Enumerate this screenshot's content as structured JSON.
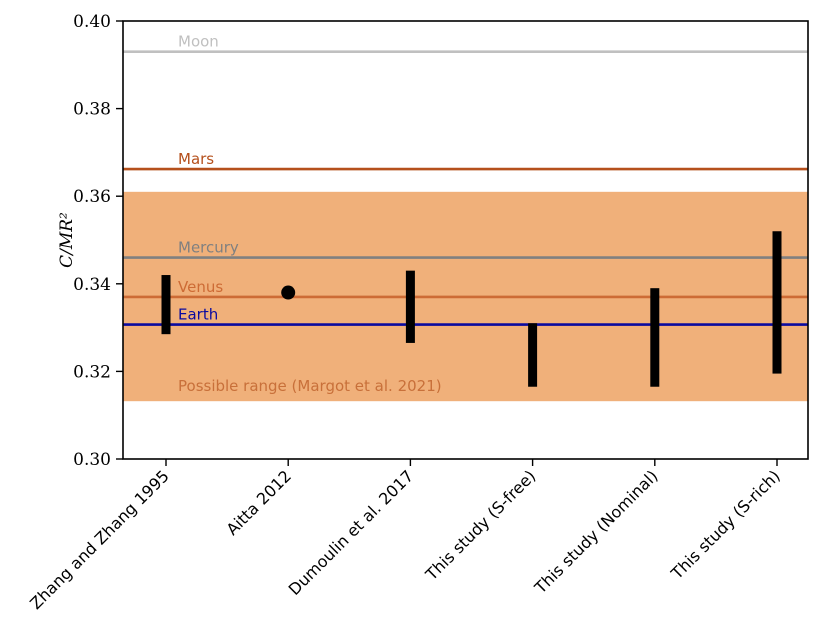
{
  "chart_data": {
    "type": "scatter",
    "title": "",
    "xlabel": "",
    "ylabel": "C/MR²",
    "ylim": [
      0.3,
      0.4
    ],
    "yticks": [
      "0.30",
      "0.32",
      "0.34",
      "0.36",
      "0.38",
      "0.40"
    ],
    "grid": false,
    "categories": [
      "Zhang and Zhang 1995",
      "Aitta 2012",
      "Dumoulin et al. 2017",
      "This study (S-free)",
      "This study (Nominal)",
      "This study (S-rich)"
    ],
    "ranges": [
      {
        "category": "Zhang and Zhang 1995",
        "low": 0.3285,
        "high": 0.342
      },
      {
        "category": "Dumoulin et al. 2017",
        "low": 0.3265,
        "high": 0.343
      },
      {
        "category": "This study (S-free)",
        "low": 0.3165,
        "high": 0.331
      },
      {
        "category": "This study (Nominal)",
        "low": 0.3165,
        "high": 0.339
      },
      {
        "category": "This study (S-rich)",
        "low": 0.3195,
        "high": 0.352
      }
    ],
    "points": [
      {
        "category": "Aitta 2012",
        "value": 0.338
      }
    ],
    "reference_lines": [
      {
        "label": "Moon",
        "value": 0.393,
        "color": "#c0c0c0"
      },
      {
        "label": "Mars",
        "value": 0.3662,
        "color": "#b5501c"
      },
      {
        "label": "Mercury",
        "value": 0.346,
        "color": "#808080"
      },
      {
        "label": "Venus",
        "value": 0.337,
        "color": "#cd6b35"
      },
      {
        "label": "Earth",
        "value": 0.3307,
        "color": "#0a0aa0"
      }
    ],
    "band": {
      "label": "Possible range (Margot et al. 2021)",
      "low": 0.3132,
      "high": 0.361,
      "color": "#f0b07a",
      "label_color": "#c8703a"
    },
    "marker_color": "#000000"
  }
}
